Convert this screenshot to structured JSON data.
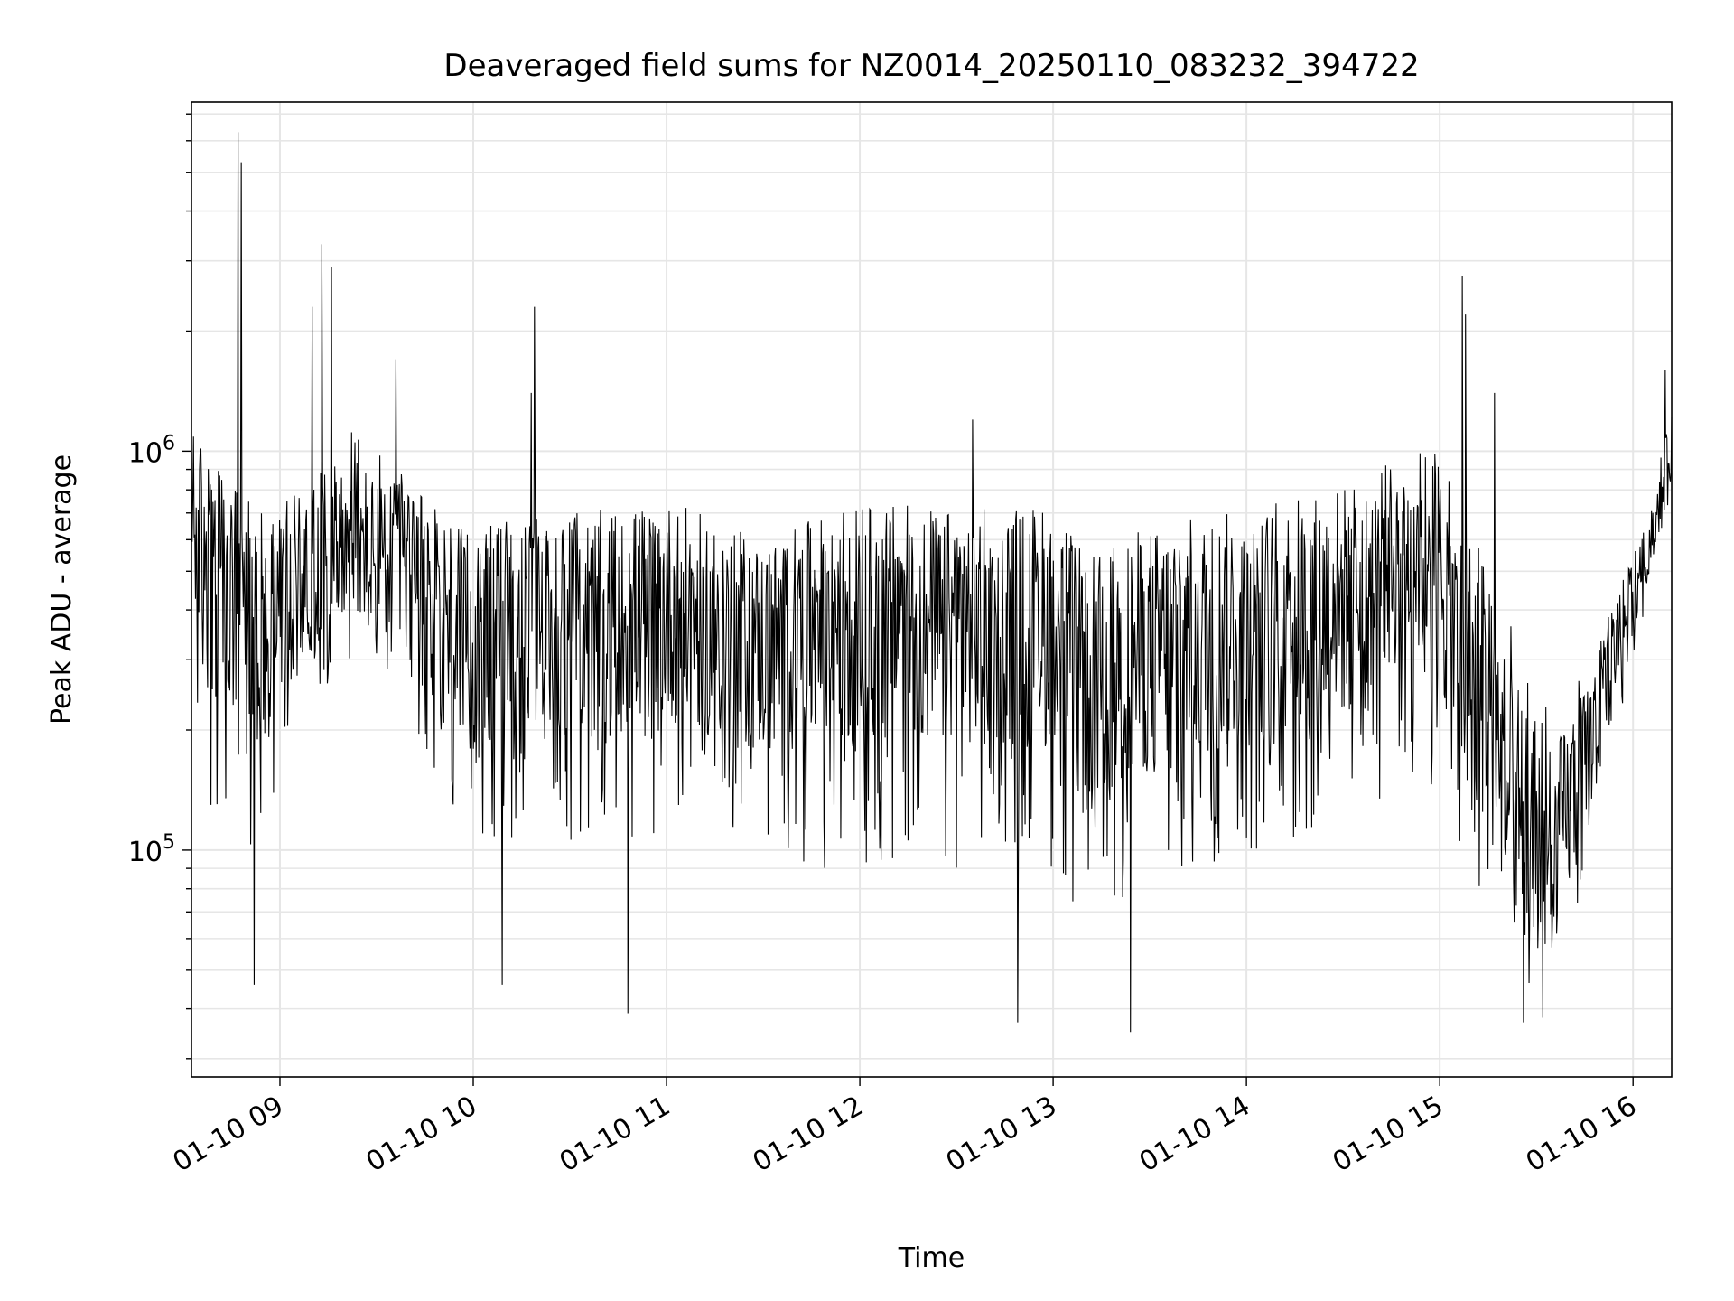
{
  "chart_data": {
    "type": "line",
    "title": "Deaveraged field sums for NZ0014_20250110_083232_394722",
    "xlabel": "Time",
    "ylabel": "Peak ADU - average",
    "x_range": [
      "2025-01-10 08:32:32",
      "2025-01-10 16:12:00"
    ],
    "ylim": [
      27000,
      7500000
    ],
    "yscale": "log",
    "grid": true,
    "line_color": "#000000",
    "x_ticks": [
      {
        "label": "01-10 09",
        "time": "2025-01-10 09:00"
      },
      {
        "label": "01-10 10",
        "time": "2025-01-10 10:00"
      },
      {
        "label": "01-10 11",
        "time": "2025-01-10 11:00"
      },
      {
        "label": "01-10 12",
        "time": "2025-01-10 12:00"
      },
      {
        "label": "01-10 13",
        "time": "2025-01-10 13:00"
      },
      {
        "label": "01-10 14",
        "time": "2025-01-10 14:00"
      },
      {
        "label": "01-10 15",
        "time": "2025-01-10 15:00"
      },
      {
        "label": "01-10 16",
        "time": "2025-01-10 16:00"
      }
    ],
    "y_ticks": [
      {
        "base": "10",
        "exp": "5",
        "value": 100000
      },
      {
        "base": "10",
        "exp": "6",
        "value": 1000000
      }
    ],
    "series": [
      {
        "envelope": [
          {
            "x": "2025-01-10 08:32",
            "lo": 300000,
            "mid": 700000,
            "hi": 1200000
          },
          {
            "x": "2025-01-10 08:40",
            "lo": 100000,
            "mid": 450000,
            "hi": 900000
          },
          {
            "x": "2025-01-10 08:50",
            "lo": 100000,
            "mid": 350000,
            "hi": 800000
          },
          {
            "x": "2025-01-10 09:00",
            "lo": 140000,
            "mid": 400000,
            "hi": 800000
          },
          {
            "x": "2025-01-10 09:10",
            "lo": 220000,
            "mid": 520000,
            "hi": 900000
          },
          {
            "x": "2025-01-10 09:20",
            "lo": 300000,
            "mid": 650000,
            "hi": 1200000
          },
          {
            "x": "2025-01-10 09:30",
            "lo": 280000,
            "mid": 550000,
            "hi": 1000000
          },
          {
            "x": "2025-01-10 09:40",
            "lo": 220000,
            "mid": 500000,
            "hi": 900000
          },
          {
            "x": "2025-01-10 09:50",
            "lo": 110000,
            "mid": 380000,
            "hi": 700000
          },
          {
            "x": "2025-01-10 10:00",
            "lo": 100000,
            "mid": 340000,
            "hi": 650000
          },
          {
            "x": "2025-01-10 10:20",
            "lo": 110000,
            "mid": 380000,
            "hi": 650000
          },
          {
            "x": "2025-01-10 10:40",
            "lo": 100000,
            "mid": 370000,
            "hi": 650000
          },
          {
            "x": "2025-01-10 11:00",
            "lo": 110000,
            "mid": 400000,
            "hi": 680000
          },
          {
            "x": "2025-01-10 11:30",
            "lo": 100000,
            "mid": 320000,
            "hi": 600000
          },
          {
            "x": "2025-01-10 12:00",
            "lo": 85000,
            "mid": 370000,
            "hi": 650000
          },
          {
            "x": "2025-01-10 12:30",
            "lo": 90000,
            "mid": 360000,
            "hi": 650000
          },
          {
            "x": "2025-01-10 13:00",
            "lo": 90000,
            "mid": 370000,
            "hi": 660000
          },
          {
            "x": "2025-01-10 13:10",
            "lo": 60000,
            "mid": 250000,
            "hi": 550000
          },
          {
            "x": "2025-01-10 13:30",
            "lo": 80000,
            "mid": 320000,
            "hi": 620000
          },
          {
            "x": "2025-01-10 14:00",
            "lo": 90000,
            "mid": 360000,
            "hi": 650000
          },
          {
            "x": "2025-01-10 14:30",
            "lo": 100000,
            "mid": 420000,
            "hi": 700000
          },
          {
            "x": "2025-01-10 14:50",
            "lo": 160000,
            "mid": 550000,
            "hi": 850000
          },
          {
            "x": "2025-01-10 15:00",
            "lo": 130000,
            "mid": 550000,
            "hi": 850000
          },
          {
            "x": "2025-01-10 15:05",
            "lo": 60000,
            "mid": 300000,
            "hi": 700000
          },
          {
            "x": "2025-01-10 15:15",
            "lo": 70000,
            "mid": 250000,
            "hi": 600000
          },
          {
            "x": "2025-01-10 15:25",
            "lo": 45000,
            "mid": 100000,
            "hi": 300000
          },
          {
            "x": "2025-01-10 15:35",
            "lo": 48000,
            "mid": 100000,
            "hi": 250000
          },
          {
            "x": "2025-01-10 15:45",
            "lo": 80000,
            "mid": 160000,
            "hi": 300000
          },
          {
            "x": "2025-01-10 15:55",
            "lo": 200000,
            "mid": 330000,
            "hi": 450000
          },
          {
            "x": "2025-01-10 16:05",
            "lo": 450000,
            "mid": 580000,
            "hi": 700000
          },
          {
            "x": "2025-01-10 16:12",
            "lo": 800000,
            "mid": 1000000,
            "hi": 1300000
          }
        ],
        "spikes": [
          {
            "x": "2025-01-10 08:47",
            "y": 6300000
          },
          {
            "x": "2025-01-10 08:48",
            "y": 5300000
          },
          {
            "x": "2025-01-10 09:13",
            "y": 3300000
          },
          {
            "x": "2025-01-10 09:16",
            "y": 2900000
          },
          {
            "x": "2025-01-10 09:10",
            "y": 2300000
          },
          {
            "x": "2025-01-10 09:36",
            "y": 1700000
          },
          {
            "x": "2025-01-10 10:19",
            "y": 2300000
          },
          {
            "x": "2025-01-10 10:18",
            "y": 1400000
          },
          {
            "x": "2025-01-10 12:35",
            "y": 1200000
          },
          {
            "x": "2025-01-10 15:07",
            "y": 2750000
          },
          {
            "x": "2025-01-10 15:08",
            "y": 2200000
          },
          {
            "x": "2025-01-10 15:17",
            "y": 1400000
          },
          {
            "x": "2025-01-10 16:10",
            "y": 1600000
          },
          {
            "x": "2025-01-10 08:52",
            "y": 46000
          },
          {
            "x": "2025-01-10 10:09",
            "y": 46000
          },
          {
            "x": "2025-01-10 10:48",
            "y": 39000
          },
          {
            "x": "2025-01-10 12:49",
            "y": 37000
          },
          {
            "x": "2025-01-10 13:24",
            "y": 35000
          },
          {
            "x": "2025-01-10 15:26",
            "y": 37000
          },
          {
            "x": "2025-01-10 15:32",
            "y": 38000
          }
        ]
      }
    ]
  }
}
